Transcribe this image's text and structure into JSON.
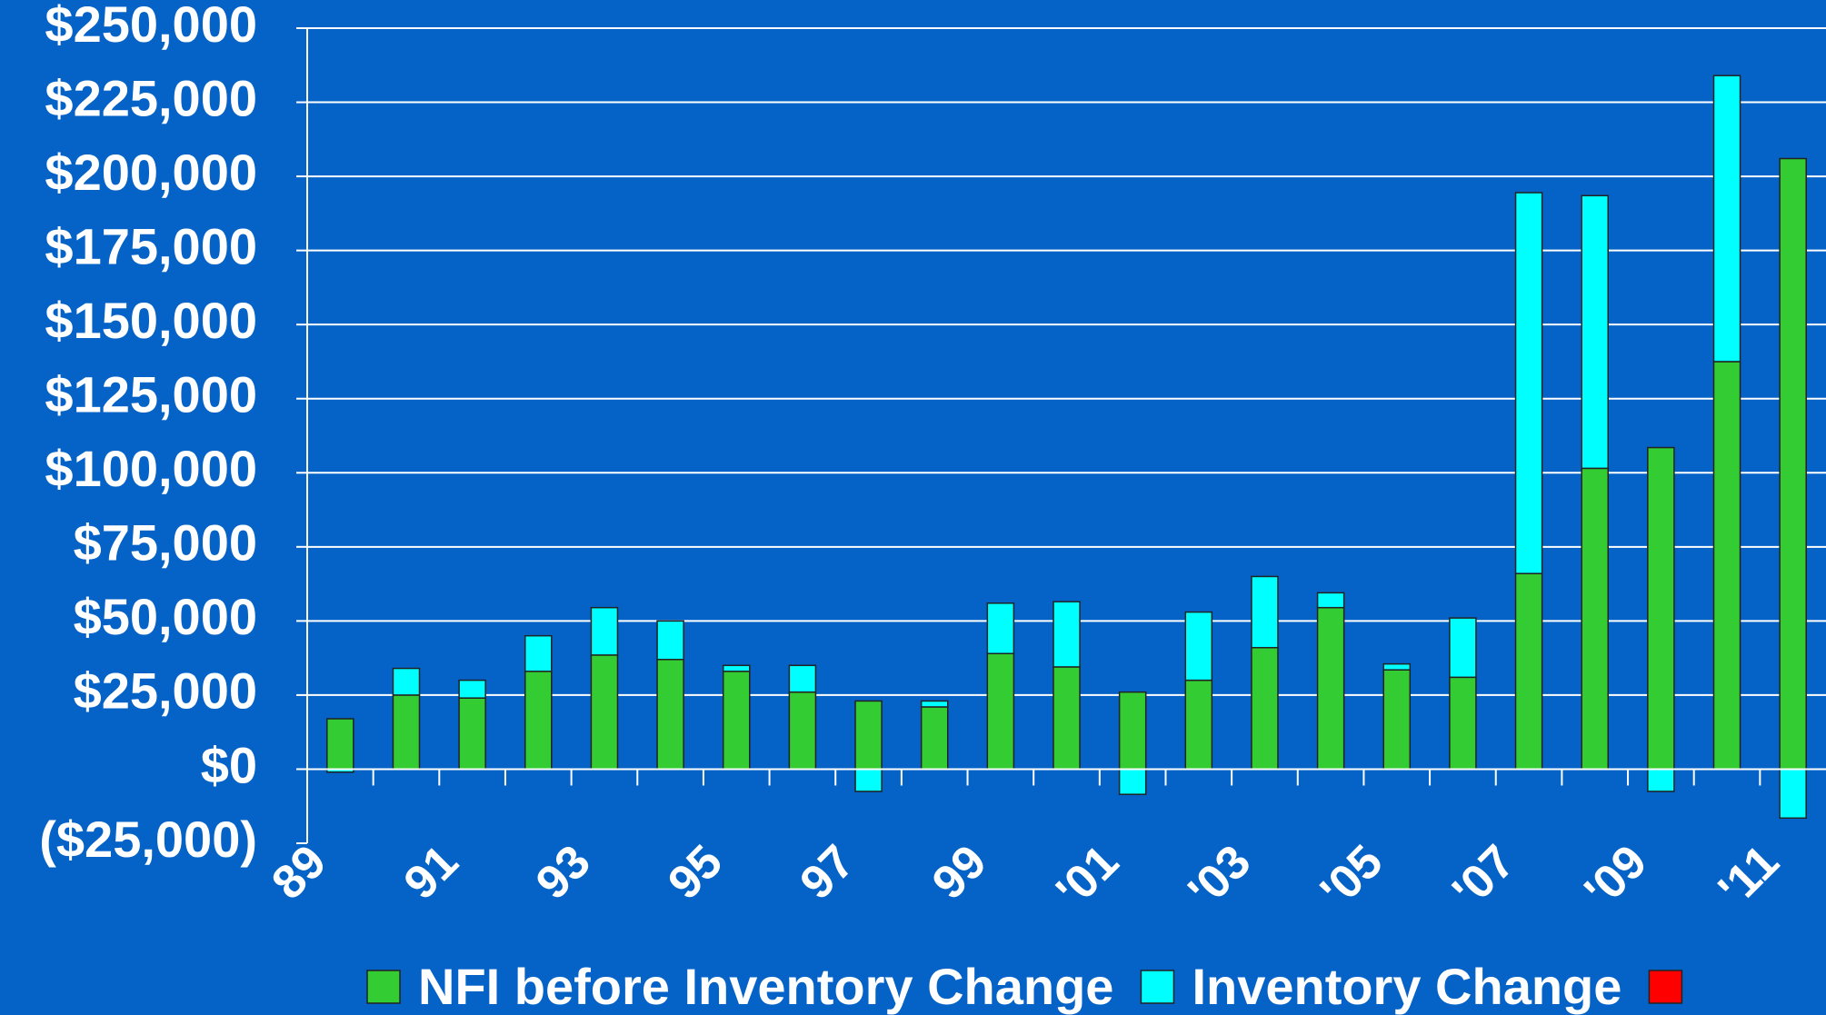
{
  "chart_data": {
    "type": "bar",
    "stacked": true,
    "categories": [
      "89",
      null,
      "91",
      null,
      "93",
      null,
      "95",
      null,
      "97",
      null,
      "99",
      null,
      "'01",
      null,
      "'03",
      null,
      "'05",
      null,
      "'07",
      null,
      "'09",
      null,
      "'11"
    ],
    "series": [
      {
        "name": "NFI before Inventory Change",
        "color": "#33cc33",
        "values": [
          17000,
          25000,
          24000,
          33000,
          38500,
          37000,
          33000,
          26000,
          23000,
          21000,
          39000,
          34500,
          26000,
          30000,
          41000,
          54500,
          33500,
          31000,
          66000,
          101500,
          108500,
          137500,
          206000
        ]
      },
      {
        "name": "Inventory Change",
        "color": "#00ffff",
        "values": [
          -1000,
          9000,
          6000,
          12000,
          16000,
          13000,
          2000,
          9000,
          -7500,
          2000,
          17000,
          22000,
          -8500,
          23000,
          24000,
          5000,
          2000,
          20000,
          128500,
          92000,
          -7500,
          96500,
          -16500
        ]
      },
      {
        "color": "#ff0000",
        "values": [
          null,
          null,
          null,
          null,
          null,
          null,
          null,
          null,
          null,
          null,
          null,
          null,
          null,
          null,
          null,
          null,
          null,
          null,
          null,
          null,
          null,
          null,
          null
        ]
      }
    ],
    "ylim": [
      -25000,
      250000
    ],
    "yticks": [
      {
        "value": -25000,
        "label": "($25,000)"
      },
      {
        "value": 0,
        "label": "$0"
      },
      {
        "value": 25000,
        "label": "$25,000"
      },
      {
        "value": 50000,
        "label": "$50,000"
      },
      {
        "value": 75000,
        "label": "$75,000"
      },
      {
        "value": 100000,
        "label": "$100,000"
      },
      {
        "value": 125000,
        "label": "$125,000"
      },
      {
        "value": 150000,
        "label": "$150,000"
      },
      {
        "value": 175000,
        "label": "$175,000"
      },
      {
        "value": 200000,
        "label": "$200,000"
      },
      {
        "value": 225000,
        "label": "$225,000"
      },
      {
        "value": 250000,
        "label": "$250,000"
      }
    ],
    "grid": true,
    "legend": "bottom"
  }
}
